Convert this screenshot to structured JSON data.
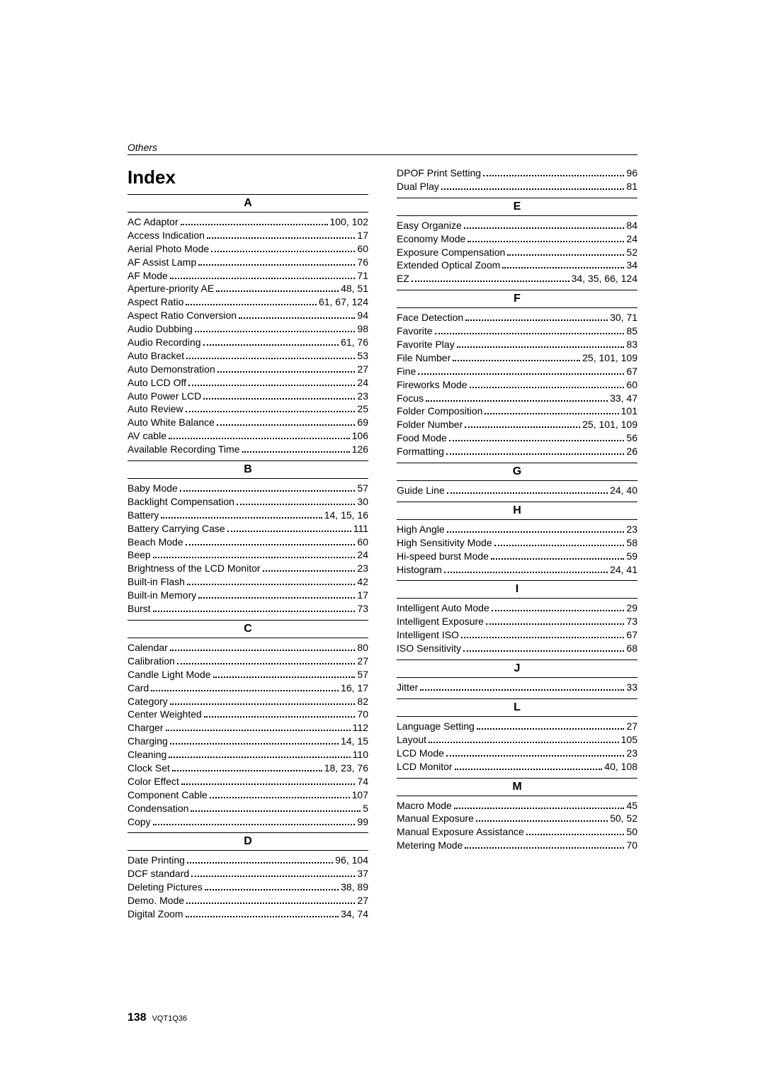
{
  "header_section": "Others",
  "title": "Index",
  "page_number": "138",
  "doc_code": "VQT1Q36",
  "left_col": [
    {
      "letter": "A",
      "entries": [
        {
          "term": "AC Adaptor",
          "pages": "100, 102"
        },
        {
          "term": "Access Indication",
          "pages": "17"
        },
        {
          "term": "Aerial Photo Mode",
          "pages": "60"
        },
        {
          "term": "AF Assist Lamp",
          "pages": "76"
        },
        {
          "term": "AF Mode",
          "pages": "71"
        },
        {
          "term": "Aperture-priority AE",
          "pages": "48, 51"
        },
        {
          "term": "Aspect Ratio",
          "pages": "61, 67, 124"
        },
        {
          "term": "Aspect Ratio Conversion",
          "pages": "94"
        },
        {
          "term": "Audio Dubbing",
          "pages": "98"
        },
        {
          "term": "Audio Recording",
          "pages": "61, 76"
        },
        {
          "term": "Auto Bracket",
          "pages": "53"
        },
        {
          "term": "Auto Demonstration",
          "pages": "27"
        },
        {
          "term": "Auto LCD Off",
          "pages": "24"
        },
        {
          "term": "Auto Power LCD",
          "pages": "23"
        },
        {
          "term": "Auto Review",
          "pages": "25"
        },
        {
          "term": "Auto White Balance",
          "pages": "69"
        },
        {
          "term": "AV cable",
          "pages": "106"
        },
        {
          "term": "Available Recording Time",
          "pages": "126"
        }
      ]
    },
    {
      "letter": "B",
      "entries": [
        {
          "term": "Baby Mode",
          "pages": "57"
        },
        {
          "term": "Backlight Compensation",
          "pages": "30"
        },
        {
          "term": "Battery",
          "pages": "14, 15, 16"
        },
        {
          "term": "Battery Carrying Case",
          "pages": "111"
        },
        {
          "term": "Beach Mode",
          "pages": "60"
        },
        {
          "term": "Beep",
          "pages": "24"
        },
        {
          "term": "Brightness of the LCD Monitor",
          "pages": "23"
        },
        {
          "term": "Built-in Flash",
          "pages": "42"
        },
        {
          "term": "Built-in Memory",
          "pages": "17"
        },
        {
          "term": "Burst",
          "pages": "73"
        }
      ]
    },
    {
      "letter": "C",
      "entries": [
        {
          "term": "Calendar",
          "pages": "80"
        },
        {
          "term": "Calibration",
          "pages": "27"
        },
        {
          "term": "Candle Light Mode",
          "pages": "57"
        },
        {
          "term": "Card",
          "pages": "16, 17"
        },
        {
          "term": "Category",
          "pages": "82"
        },
        {
          "term": "Center Weighted",
          "pages": "70"
        },
        {
          "term": "Charger",
          "pages": "112"
        },
        {
          "term": "Charging",
          "pages": "14, 15"
        },
        {
          "term": "Cleaning",
          "pages": "110"
        },
        {
          "term": "Clock Set",
          "pages": "18, 23, 76"
        },
        {
          "term": "Color Effect",
          "pages": "74"
        },
        {
          "term": "Component Cable",
          "pages": "107"
        },
        {
          "term": "Condensation",
          "pages": "5"
        },
        {
          "term": "Copy",
          "pages": "99"
        }
      ]
    },
    {
      "letter": "D",
      "entries": [
        {
          "term": "Date Printing",
          "pages": "96, 104"
        },
        {
          "term": "DCF standard",
          "pages": "37"
        },
        {
          "term": "Deleting Pictures",
          "pages": "38, 89"
        },
        {
          "term": "Demo. Mode",
          "pages": "27"
        },
        {
          "term": "Digital Zoom",
          "pages": "34, 74"
        }
      ]
    }
  ],
  "right_pre": [
    {
      "term": "DPOF Print Setting",
      "pages": "96"
    },
    {
      "term": "Dual Play",
      "pages": "81"
    }
  ],
  "right_col": [
    {
      "letter": "E",
      "entries": [
        {
          "term": "Easy Organize",
          "pages": "84"
        },
        {
          "term": "Economy Mode",
          "pages": "24"
        },
        {
          "term": "Exposure Compensation",
          "pages": "52"
        },
        {
          "term": "Extended Optical Zoom",
          "pages": "34"
        },
        {
          "term": "EZ",
          "pages": "34, 35, 66, 124"
        }
      ]
    },
    {
      "letter": "F",
      "entries": [
        {
          "term": "Face Detection",
          "pages": "30, 71"
        },
        {
          "term": "Favorite",
          "pages": "85"
        },
        {
          "term": "Favorite Play",
          "pages": "83"
        },
        {
          "term": "File Number",
          "pages": "25, 101, 109"
        },
        {
          "term": "Fine",
          "pages": "67"
        },
        {
          "term": "Fireworks Mode",
          "pages": "60"
        },
        {
          "term": "Focus",
          "pages": "33, 47"
        },
        {
          "term": "Folder Composition",
          "pages": "101"
        },
        {
          "term": "Folder Number",
          "pages": "25, 101, 109"
        },
        {
          "term": "Food Mode",
          "pages": "56"
        },
        {
          "term": "Formatting",
          "pages": "26"
        }
      ]
    },
    {
      "letter": "G",
      "entries": [
        {
          "term": "Guide Line",
          "pages": "24, 40"
        }
      ]
    },
    {
      "letter": "H",
      "entries": [
        {
          "term": "High Angle",
          "pages": "23"
        },
        {
          "term": "High Sensitivity Mode",
          "pages": "58"
        },
        {
          "term": "Hi-speed burst Mode",
          "pages": "59"
        },
        {
          "term": "Histogram",
          "pages": "24, 41"
        }
      ]
    },
    {
      "letter": "I",
      "entries": [
        {
          "term": "Intelligent Auto Mode",
          "pages": "29"
        },
        {
          "term": "Intelligent Exposure",
          "pages": "73"
        },
        {
          "term": "Intelligent ISO",
          "pages": "67"
        },
        {
          "term": "ISO Sensitivity",
          "pages": "68"
        }
      ]
    },
    {
      "letter": "J",
      "entries": [
        {
          "term": "Jitter",
          "pages": "33"
        }
      ]
    },
    {
      "letter": "L",
      "entries": [
        {
          "term": "Language Setting",
          "pages": "27"
        },
        {
          "term": "Layout",
          "pages": "105"
        },
        {
          "term": "LCD Mode",
          "pages": "23"
        },
        {
          "term": "LCD Monitor",
          "pages": "40, 108"
        }
      ]
    },
    {
      "letter": "M",
      "entries": [
        {
          "term": "Macro Mode",
          "pages": "45"
        },
        {
          "term": "Manual Exposure",
          "pages": "50, 52"
        },
        {
          "term": "Manual Exposure Assistance",
          "pages": "50"
        },
        {
          "term": "Metering Mode",
          "pages": "70"
        }
      ]
    }
  ]
}
